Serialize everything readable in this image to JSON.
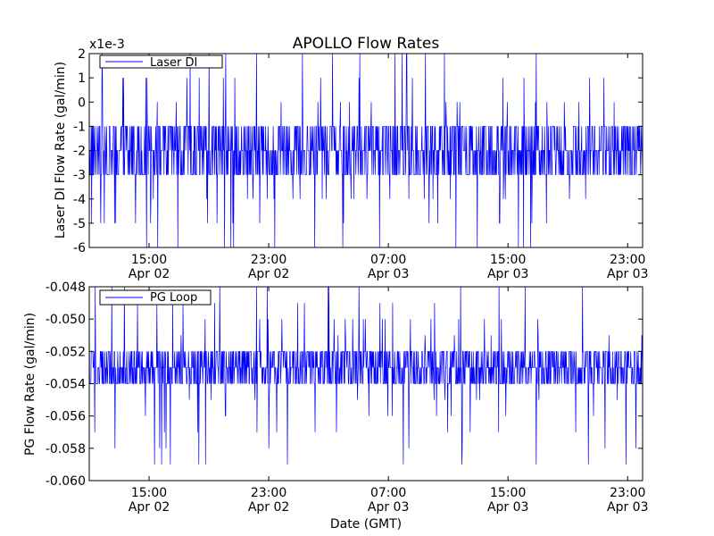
{
  "figure": {
    "title": "APOLLO Flow Rates",
    "xlabel": "Date (GMT)"
  },
  "chart_data": [
    {
      "type": "line",
      "title": "APOLLO Flow Rates",
      "ylabel": "Laser DI Flow Rate (gal/min)",
      "scale_note": "x1e-3",
      "ylim": [
        -6,
        2
      ],
      "yticks": [
        {
          "value": 2,
          "label": "2"
        },
        {
          "value": 1,
          "label": "1"
        },
        {
          "value": 0,
          "label": "0"
        },
        {
          "value": -1,
          "label": "-1"
        },
        {
          "value": -2,
          "label": "-2"
        },
        {
          "value": -3,
          "label": "-3"
        },
        {
          "value": -4,
          "label": "-4"
        },
        {
          "value": -5,
          "label": "-5"
        },
        {
          "value": -6,
          "label": "-6"
        }
      ],
      "xlim": [
        "2014-04-02 11:00",
        "2014-04-04 00:00"
      ],
      "xticks": [
        {
          "value": "2014-04-02 15:00",
          "time": "15:00",
          "date": "Apr 02"
        },
        {
          "value": "2014-04-02 23:00",
          "time": "23:00",
          "date": "Apr 02"
        },
        {
          "value": "2014-04-03 07:00",
          "time": "07:00",
          "date": "Apr 03"
        },
        {
          "value": "2014-04-03 15:00",
          "time": "15:00",
          "date": "Apr 03"
        },
        {
          "value": "2014-04-03 23:00",
          "time": "23:00",
          "date": "Apr 03"
        }
      ],
      "grid": false,
      "legend": "top-left",
      "series": [
        {
          "name": "Laser DI",
          "color": "#0000ff",
          "band_range": [
            -3,
            -1
          ],
          "typical_value": -2,
          "min": -6,
          "max": 2,
          "step": 1
        }
      ]
    },
    {
      "type": "line",
      "ylabel": "PG Flow Rate (gal/min)",
      "ylim": [
        -0.06,
        -0.048
      ],
      "yticks": [
        {
          "value": -0.048,
          "label": "-0.048"
        },
        {
          "value": -0.05,
          "label": "-0.050"
        },
        {
          "value": -0.052,
          "label": "-0.052"
        },
        {
          "value": -0.054,
          "label": "-0.054"
        },
        {
          "value": -0.056,
          "label": "-0.056"
        },
        {
          "value": -0.058,
          "label": "-0.058"
        },
        {
          "value": -0.06,
          "label": "-0.060"
        }
      ],
      "xlim": [
        "2014-04-02 11:00",
        "2014-04-04 00:00"
      ],
      "xticks": [
        {
          "value": "2014-04-02 15:00",
          "time": "15:00",
          "date": "Apr 02"
        },
        {
          "value": "2014-04-02 23:00",
          "time": "23:00",
          "date": "Apr 02"
        },
        {
          "value": "2014-04-03 07:00",
          "time": "07:00",
          "date": "Apr 03"
        },
        {
          "value": "2014-04-03 15:00",
          "time": "15:00",
          "date": "Apr 03"
        },
        {
          "value": "2014-04-03 23:00",
          "time": "23:00",
          "date": "Apr 03"
        }
      ],
      "grid": false,
      "legend": "top-left",
      "series": [
        {
          "name": "PG Loop",
          "color": "#0000ff",
          "band_range": [
            -0.054,
            -0.052
          ],
          "typical_value": -0.053,
          "min": -0.059,
          "max": -0.048,
          "step": 0.001
        }
      ]
    }
  ]
}
